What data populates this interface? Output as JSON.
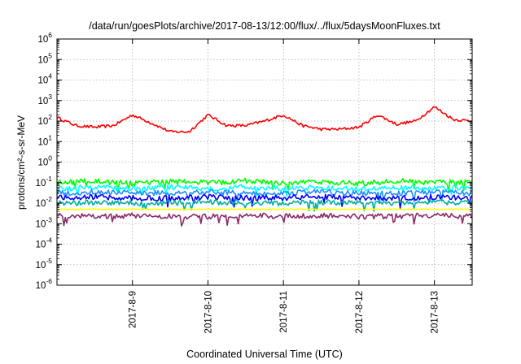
{
  "chart_data": {
    "type": "line",
    "title": "/data/run/goesPlots/archive/2017-08-13/12:00/flux/../flux/5daysMoonFluxes.txt",
    "xlabel": "Coordinated Universal Time (UTC)",
    "ylabel": "protons/cm²-s-sr-MeV",
    "y_scale": "log",
    "ylim": [
      1e-06,
      1000000.0
    ],
    "xlim": [
      "2017-08-08 00:00",
      "2017-08-13 12:00"
    ],
    "x_ticks": [
      "2017-8-9",
      "2017-8-10",
      "2017-8-11",
      "2017-8-12",
      "2017-8-13"
    ],
    "y_ticks": [
      {
        "base": "10",
        "exp": "-6"
      },
      {
        "base": "10",
        "exp": "-5"
      },
      {
        "base": "10",
        "exp": "-4"
      },
      {
        "base": "10",
        "exp": "-3"
      },
      {
        "base": "10",
        "exp": "-2"
      },
      {
        "base": "10",
        "exp": "-1"
      },
      {
        "base": "10",
        "exp": "0"
      },
      {
        "base": "10",
        "exp": "1"
      },
      {
        "base": "10",
        "exp": "2"
      },
      {
        "base": "10",
        "exp": "3"
      },
      {
        "base": "10",
        "exp": "4"
      },
      {
        "base": "10",
        "exp": "5"
      },
      {
        "base": "10",
        "exp": "6"
      }
    ],
    "grid": true,
    "series": [
      {
        "color": "#ff0000",
        "x": [
          "2017-08-08 00:00",
          "2017-08-08 06:00",
          "2017-08-08 12:00",
          "2017-08-08 18:00",
          "2017-08-09 00:00",
          "2017-08-09 06:00",
          "2017-08-09 12:00",
          "2017-08-09 18:00",
          "2017-08-10 00:00",
          "2017-08-10 06:00",
          "2017-08-10 12:00",
          "2017-08-10 18:00",
          "2017-08-11 00:00",
          "2017-08-11 06:00",
          "2017-08-11 12:00",
          "2017-08-11 18:00",
          "2017-08-12 00:00",
          "2017-08-12 06:00",
          "2017-08-12 12:00",
          "2017-08-12 18:00",
          "2017-08-13 00:00",
          "2017-08-13 06:00",
          "2017-08-13 12:00"
        ],
        "values": [
          150,
          60,
          50,
          60,
          200,
          80,
          30,
          30,
          200,
          60,
          60,
          100,
          200,
          60,
          40,
          40,
          50,
          200,
          70,
          100,
          500,
          120,
          100
        ]
      },
      {
        "color": "#00ff00",
        "x": [
          "2017-08-08 00:00",
          "2017-08-08 12:00",
          "2017-08-09 00:00",
          "2017-08-09 12:00",
          "2017-08-10 00:00",
          "2017-08-10 12:00",
          "2017-08-11 00:00",
          "2017-08-11 12:00",
          "2017-08-12 00:00",
          "2017-08-12 12:00",
          "2017-08-13 00:00",
          "2017-08-13 12:00"
        ],
        "values": [
          0.1,
          0.12,
          0.09,
          0.11,
          0.1,
          0.12,
          0.1,
          0.11,
          0.09,
          0.12,
          0.1,
          0.11
        ]
      },
      {
        "color": "#00ffff",
        "x": [
          "2017-08-08 00:00",
          "2017-08-08 12:00",
          "2017-08-09 00:00",
          "2017-08-09 12:00",
          "2017-08-10 00:00",
          "2017-08-10 12:00",
          "2017-08-11 00:00",
          "2017-08-11 12:00",
          "2017-08-12 00:00",
          "2017-08-12 12:00",
          "2017-08-13 00:00",
          "2017-08-13 12:00"
        ],
        "values": [
          0.05,
          0.06,
          0.05,
          0.06,
          0.05,
          0.06,
          0.05,
          0.06,
          0.05,
          0.06,
          0.05,
          0.06
        ]
      },
      {
        "color": "#1f8fff",
        "x": [
          "2017-08-08 00:00",
          "2017-08-08 12:00",
          "2017-08-09 00:00",
          "2017-08-09 12:00",
          "2017-08-10 00:00",
          "2017-08-10 12:00",
          "2017-08-11 00:00",
          "2017-08-11 12:00",
          "2017-08-12 00:00",
          "2017-08-12 12:00",
          "2017-08-13 00:00",
          "2017-08-13 12:00"
        ],
        "values": [
          0.03,
          0.035,
          0.03,
          0.03,
          0.035,
          0.03,
          0.03,
          0.035,
          0.03,
          0.03,
          0.035,
          0.03
        ]
      },
      {
        "color": "#0000ff",
        "x": [
          "2017-08-08 00:00",
          "2017-08-08 12:00",
          "2017-08-09 00:00",
          "2017-08-09 12:00",
          "2017-08-10 00:00",
          "2017-08-10 12:00",
          "2017-08-11 00:00",
          "2017-08-11 12:00",
          "2017-08-12 00:00",
          "2017-08-12 12:00",
          "2017-08-13 00:00",
          "2017-08-13 12:00"
        ],
        "values": [
          0.018,
          0.02,
          0.018,
          0.017,
          0.02,
          0.018,
          0.018,
          0.02,
          0.018,
          0.017,
          0.02,
          0.018
        ]
      },
      {
        "color": "#00b0a0",
        "x": [
          "2017-08-08 00:00",
          "2017-08-08 12:00",
          "2017-08-09 00:00",
          "2017-08-09 12:00",
          "2017-08-10 00:00",
          "2017-08-10 12:00",
          "2017-08-11 00:00",
          "2017-08-11 12:00",
          "2017-08-12 00:00",
          "2017-08-12 12:00",
          "2017-08-13 00:00",
          "2017-08-13 12:00"
        ],
        "values": [
          0.01,
          0.011,
          0.01,
          0.01,
          0.011,
          0.01,
          0.01,
          0.011,
          0.01,
          0.01,
          0.011,
          0.01
        ]
      },
      {
        "color": "#ffff00",
        "x": [
          "2017-08-08 00:00",
          "2017-08-08 12:00",
          "2017-08-09 00:00",
          "2017-08-09 12:00",
          "2017-08-10 00:00",
          "2017-08-10 12:00",
          "2017-08-11 00:00",
          "2017-08-11 12:00",
          "2017-08-12 00:00",
          "2017-08-12 12:00",
          "2017-08-13 00:00",
          "2017-08-13 12:00"
        ],
        "values": [
          0.005,
          0.005,
          0.005,
          0.005,
          0.005,
          0.005,
          0.005,
          0.005,
          0.005,
          0.005,
          0.005,
          0.005
        ]
      },
      {
        "color": "#8b2a6b",
        "x": [
          "2017-08-08 00:00",
          "2017-08-08 12:00",
          "2017-08-09 00:00",
          "2017-08-09 12:00",
          "2017-08-10 00:00",
          "2017-08-10 12:00",
          "2017-08-11 00:00",
          "2017-08-11 12:00",
          "2017-08-12 00:00",
          "2017-08-12 12:00",
          "2017-08-13 00:00",
          "2017-08-13 12:00"
        ],
        "values": [
          0.0025,
          0.0022,
          0.0025,
          0.0023,
          0.0022,
          0.0025,
          0.0023,
          0.0025,
          0.0022,
          0.0023,
          0.0025,
          0.0023
        ]
      }
    ]
  }
}
